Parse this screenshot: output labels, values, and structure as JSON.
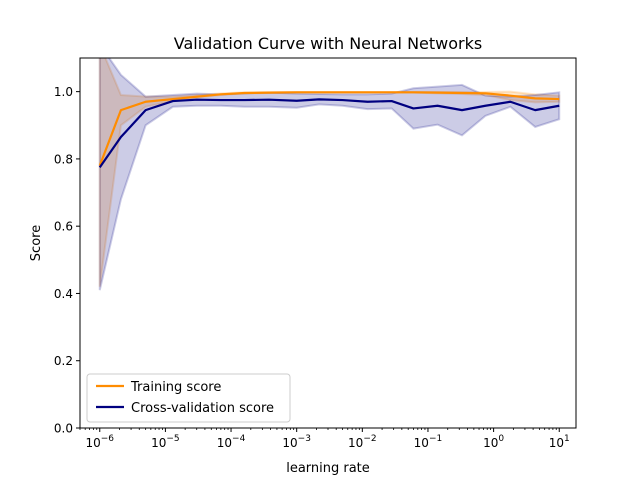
{
  "chart_data": {
    "type": "line",
    "title": "Validation Curve with Neural Networks",
    "xlabel": "learning rate",
    "ylabel": "Score",
    "x_scale": "log",
    "xlim": [
      5e-07,
      18
    ],
    "ylim": [
      0.0,
      1.1
    ],
    "y_ticks": [
      0.0,
      0.2,
      0.4,
      0.6,
      0.8,
      1.0
    ],
    "y_tick_labels": [
      "0.0",
      "0.2",
      "0.4",
      "0.6",
      "0.8",
      "1.0"
    ],
    "x_ticks": [
      -6,
      -5,
      -4,
      -3,
      -2,
      -1,
      0,
      1
    ],
    "x_tick_labels": [
      "10",
      "10",
      "10",
      "10",
      "10",
      "10",
      "10",
      "10"
    ],
    "x_tick_exponents": [
      "−6",
      "−5",
      "−4",
      "−3",
      "−2",
      "−1",
      "0",
      "1"
    ],
    "grid": false,
    "legend_position": "lower-left",
    "x": [
      1e-06,
      2.1e-06,
      5e-06,
      1.3e-05,
      3e-05,
      7e-05,
      0.00016,
      0.00038,
      0.001,
      0.0022,
      0.005,
      0.012,
      0.028,
      0.06,
      0.14,
      0.33,
      0.75,
      1.8,
      4.3,
      10
    ],
    "series": [
      {
        "name": "Training score",
        "color": "#ff8c00",
        "values": [
          0.78,
          0.945,
          0.97,
          0.978,
          0.985,
          0.992,
          0.996,
          0.997,
          0.998,
          0.998,
          0.998,
          0.998,
          0.998,
          0.998,
          0.997,
          0.996,
          0.995,
          0.988,
          0.98,
          0.978
        ],
        "lower": [
          0.42,
          0.9,
          0.955,
          0.972,
          0.982,
          0.99,
          0.995,
          0.996,
          0.997,
          0.997,
          0.997,
          0.997,
          0.997,
          0.997,
          0.995,
          0.993,
          0.99,
          0.975,
          0.968,
          0.97
        ],
        "upper": [
          1.14,
          0.99,
          0.985,
          0.985,
          0.99,
          0.995,
          0.998,
          0.998,
          0.999,
          0.999,
          0.999,
          0.999,
          0.999,
          0.999,
          0.999,
          0.999,
          0.999,
          1.0,
          0.992,
          0.988
        ]
      },
      {
        "name": "Cross-validation score",
        "color": "#000080",
        "values": [
          0.775,
          0.865,
          0.945,
          0.972,
          0.976,
          0.975,
          0.975,
          0.976,
          0.973,
          0.977,
          0.975,
          0.97,
          0.972,
          0.95,
          0.958,
          0.945,
          0.958,
          0.97,
          0.945,
          0.958
        ],
        "lower": [
          0.41,
          0.68,
          0.9,
          0.955,
          0.958,
          0.958,
          0.955,
          0.955,
          0.952,
          0.962,
          0.958,
          0.948,
          0.95,
          0.89,
          0.902,
          0.87,
          0.928,
          0.955,
          0.895,
          0.918
        ],
        "upper": [
          1.14,
          1.05,
          0.985,
          0.99,
          0.994,
          0.992,
          0.995,
          0.997,
          0.994,
          0.993,
          0.992,
          0.992,
          0.994,
          1.01,
          1.015,
          1.02,
          0.988,
          0.985,
          0.99,
          0.998
        ]
      }
    ]
  }
}
